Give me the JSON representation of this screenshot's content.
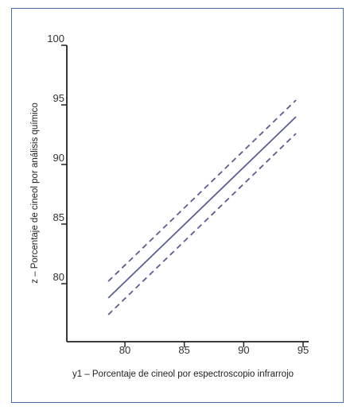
{
  "chart_data": {
    "type": "line",
    "title": "",
    "xlabel": "y1 – Porcentaje de cineol por espectroscopio infrarrojo",
    "ylabel": "z – Porcentaje de cineol por análisis químico",
    "xlim": [
      75,
      95
    ],
    "ylim": [
      75,
      100
    ],
    "x_ticks": [
      80,
      85,
      90,
      95
    ],
    "y_ticks": [
      80,
      85,
      90,
      95,
      100
    ],
    "grid": false,
    "legend": "none",
    "series": [
      {
        "style": "solid",
        "color": "#5a5f8f",
        "x": [
          78.6,
          94.4
        ],
        "y": [
          78.8,
          94.0
        ]
      },
      {
        "style": "dashed",
        "color": "#5a5f8f",
        "x": [
          78.6,
          94.4
        ],
        "y": [
          80.2,
          95.4
        ]
      },
      {
        "style": "dashed",
        "color": "#5a5f8f",
        "x": [
          78.6,
          94.4
        ],
        "y": [
          77.4,
          92.6
        ]
      }
    ]
  }
}
